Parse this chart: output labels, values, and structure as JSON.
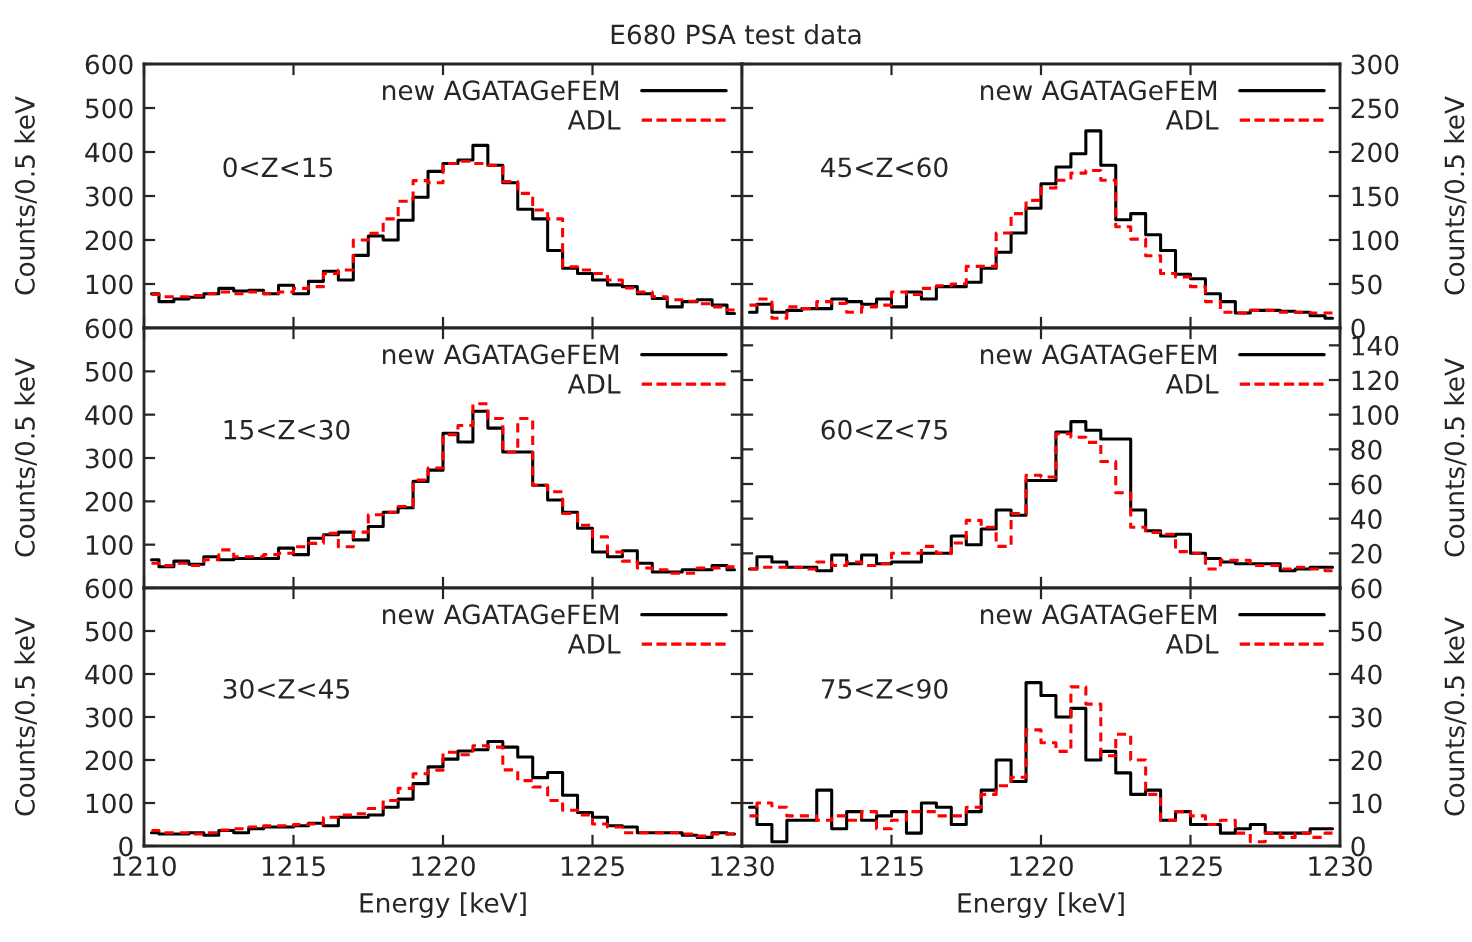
{
  "chart_data": [
    {
      "type": "step",
      "title": "E680 PSA test data",
      "ylabel": "Counts/0.5 keV",
      "tick_labels": "y",
      "legend": "top right",
      "annotations": [
        "0<Z<15"
      ],
      "x": [
        1210.25,
        1210.75,
        1211.25,
        1211.75,
        1212.25,
        1212.75,
        1213.25,
        1213.75,
        1214.25,
        1214.75,
        1215.25,
        1215.75,
        1216.25,
        1216.75,
        1217.25,
        1217.75,
        1218.25,
        1218.75,
        1219.25,
        1219.75,
        1220.25,
        1220.75,
        1221.25,
        1221.75,
        1222.25,
        1222.75,
        1223.25,
        1223.75,
        1224.25,
        1224.75,
        1225.25,
        1225.75,
        1226.25,
        1226.75,
        1227.25,
        1227.75,
        1228.25,
        1228.75,
        1229.25,
        1229.75
      ],
      "xlim": [
        1210,
        1230
      ],
      "xticks": [
        1210,
        1215,
        1220,
        1225,
        1230
      ],
      "ylim": [
        0,
        600
      ],
      "yticks": [
        100,
        200,
        300,
        400,
        500,
        600
      ],
      "series": [
        {
          "name": "new AGATAGeFEM",
          "color": "#000000",
          "line_style": "solid",
          "values": [
            78,
            60,
            66,
            70,
            78,
            90,
            84,
            86,
            78,
            97,
            78,
            106,
            129,
            109,
            165,
            209,
            200,
            245,
            297,
            356,
            374,
            382,
            415,
            370,
            330,
            270,
            248,
            176,
            136,
            124,
            109,
            98,
            94,
            78,
            67,
            48,
            60,
            64,
            52,
            33
          ]
        },
        {
          "name": "ADL",
          "color": "#ff0000",
          "line_style": "dashed",
          "values": [
            76,
            71,
            71,
            74,
            78,
            82,
            78,
            82,
            78,
            82,
            90,
            94,
            124,
            132,
            200,
            215,
            248,
            288,
            335,
            330,
            374,
            379,
            374,
            370,
            333,
            306,
            268,
            248,
            139,
            132,
            124,
            109,
            91,
            82,
            71,
            64,
            61,
            55,
            48,
            41
          ]
        }
      ]
    },
    {
      "type": "step",
      "ylabel": "Counts/0.5 keV",
      "tick_labels": "y",
      "legend": "top right",
      "annotations": [
        "45<Z<60"
      ],
      "x": [
        1210.25,
        1210.75,
        1211.25,
        1211.75,
        1212.25,
        1212.75,
        1213.25,
        1213.75,
        1214.25,
        1214.75,
        1215.25,
        1215.75,
        1216.25,
        1216.75,
        1217.25,
        1217.75,
        1218.25,
        1218.75,
        1219.25,
        1219.75,
        1220.25,
        1220.75,
        1221.25,
        1221.75,
        1222.25,
        1222.75,
        1223.25,
        1223.75,
        1224.25,
        1224.75,
        1225.25,
        1225.75,
        1226.25,
        1226.75,
        1227.25,
        1227.75,
        1228.25,
        1228.75,
        1229.25,
        1229.75
      ],
      "xlim": [
        1210,
        1230
      ],
      "xticks": [
        1210,
        1215,
        1220,
        1225,
        1230
      ],
      "ylim": [
        0,
        300
      ],
      "yticks": [
        0,
        50,
        100,
        150,
        200,
        250,
        300
      ],
      "series": [
        {
          "name": "new AGATAGeFEM",
          "color": "#000000",
          "line_style": "solid",
          "values": [
            18,
            27,
            18,
            20,
            22,
            22,
            33,
            30,
            27,
            33,
            24,
            41,
            33,
            47,
            47,
            52,
            68,
            86,
            108,
            136,
            164,
            183,
            198,
            224,
            185,
            123,
            130,
            106,
            88,
            61,
            56,
            39,
            30,
            17,
            20,
            20,
            19,
            18,
            14,
            11
          ]
        },
        {
          "name": "ADL",
          "color": "#ff0000",
          "line_style": "dashed",
          "values": [
            26,
            33,
            11,
            24,
            22,
            30,
            28,
            18,
            24,
            26,
            41,
            38,
            45,
            48,
            50,
            70,
            70,
            108,
            130,
            145,
            159,
            168,
            176,
            179,
            168,
            115,
            101,
            82,
            62,
            58,
            47,
            30,
            18,
            17,
            20,
            20,
            18,
            18,
            17,
            17
          ]
        }
      ]
    },
    {
      "type": "step",
      "ylabel": "Counts/0.5 keV",
      "tick_labels": "y",
      "legend": "top right",
      "annotations": [
        "15<Z<30"
      ],
      "x": [
        1210.25,
        1210.75,
        1211.25,
        1211.75,
        1212.25,
        1212.75,
        1213.25,
        1213.75,
        1214.25,
        1214.75,
        1215.25,
        1215.75,
        1216.25,
        1216.75,
        1217.25,
        1217.75,
        1218.25,
        1218.75,
        1219.25,
        1219.75,
        1220.25,
        1220.75,
        1221.25,
        1221.75,
        1222.25,
        1222.75,
        1223.25,
        1223.75,
        1224.25,
        1224.75,
        1225.25,
        1225.75,
        1226.25,
        1226.75,
        1227.25,
        1227.75,
        1228.25,
        1228.75,
        1229.25,
        1229.75
      ],
      "xlim": [
        1210,
        1230
      ],
      "xticks": [
        1210,
        1215,
        1220,
        1225,
        1230
      ],
      "ylim": [
        0,
        600
      ],
      "yticks": [
        100,
        200,
        300,
        400,
        500,
        600
      ],
      "series": [
        {
          "name": "new AGATAGeFEM",
          "color": "#000000",
          "line_style": "solid",
          "values": [
            65,
            49,
            62,
            55,
            72,
            65,
            68,
            68,
            68,
            92,
            77,
            115,
            123,
            129,
            111,
            142,
            175,
            185,
            246,
            272,
            357,
            337,
            408,
            369,
            314,
            314,
            237,
            203,
            175,
            138,
            83,
            72,
            86,
            57,
            37,
            37,
            42,
            42,
            52,
            42
          ]
        },
        {
          "name": "ADL",
          "color": "#ff0000",
          "line_style": "dashed",
          "values": [
            57,
            52,
            57,
            52,
            65,
            88,
            72,
            72,
            77,
            80,
            95,
            103,
            126,
            95,
            129,
            169,
            175,
            188,
            249,
            277,
            354,
            375,
            425,
            391,
            314,
            391,
            237,
            222,
            172,
            145,
            118,
            83,
            62,
            46,
            42,
            34,
            34,
            46,
            46,
            49
          ]
        }
      ]
    },
    {
      "type": "step",
      "ylabel": "Counts/0.5 keV",
      "tick_labels": "y",
      "legend": "top right",
      "annotations": [
        "60<Z<75"
      ],
      "x": [
        1210.25,
        1210.75,
        1211.25,
        1211.75,
        1212.25,
        1212.75,
        1213.25,
        1213.75,
        1214.25,
        1214.75,
        1215.25,
        1215.75,
        1216.25,
        1216.75,
        1217.25,
        1217.75,
        1218.25,
        1218.75,
        1219.25,
        1219.75,
        1220.25,
        1220.75,
        1221.25,
        1221.75,
        1222.25,
        1222.75,
        1223.25,
        1223.75,
        1224.25,
        1224.75,
        1225.25,
        1225.75,
        1226.25,
        1226.75,
        1227.25,
        1227.75,
        1228.25,
        1228.75,
        1229.25,
        1229.75
      ],
      "xlim": [
        1210,
        1230
      ],
      "xticks": [
        1210,
        1215,
        1220,
        1225,
        1230
      ],
      "ylim": [
        0,
        150
      ],
      "yticks": [
        20,
        40,
        60,
        80,
        100,
        120,
        140
      ],
      "series": [
        {
          "name": "new AGATAGeFEM",
          "color": "#000000",
          "line_style": "solid",
          "values": [
            11,
            18,
            15,
            12,
            12,
            10,
            19,
            14,
            19,
            14,
            15,
            15,
            20,
            20,
            30,
            25,
            34,
            45,
            42,
            62,
            62,
            90,
            96,
            91,
            86,
            86,
            45,
            33,
            30,
            31,
            20,
            17,
            15,
            14,
            14,
            14,
            10,
            11,
            12,
            12
          ]
        },
        {
          "name": "ADL",
          "color": "#ff0000",
          "line_style": "dashed",
          "values": [
            11,
            12,
            12,
            12,
            11,
            15,
            13,
            15,
            13,
            14,
            20,
            20,
            24,
            20,
            26,
            39,
            35,
            24,
            43,
            65,
            64,
            89,
            87,
            84,
            73,
            55,
            35,
            32,
            31,
            21,
            20,
            11,
            16,
            16,
            13,
            13,
            11,
            12,
            11,
            10
          ]
        }
      ]
    },
    {
      "type": "step",
      "xlabel": "Energy [keV]",
      "ylabel": "Counts/0.5 keV",
      "legend": "top right",
      "annotations": [
        "30<Z<45"
      ],
      "x": [
        1210.25,
        1210.75,
        1211.25,
        1211.75,
        1212.25,
        1212.75,
        1213.25,
        1213.75,
        1214.25,
        1214.75,
        1215.25,
        1215.75,
        1216.25,
        1216.75,
        1217.25,
        1217.75,
        1218.25,
        1218.75,
        1219.25,
        1219.75,
        1220.25,
        1220.75,
        1221.25,
        1221.75,
        1222.25,
        1222.75,
        1223.25,
        1223.75,
        1224.25,
        1224.75,
        1225.25,
        1225.75,
        1226.25,
        1226.75,
        1227.25,
        1227.75,
        1228.25,
        1228.75,
        1229.25,
        1229.75
      ],
      "xlim": [
        1210,
        1230
      ],
      "xticks": [
        1210,
        1215,
        1220,
        1225,
        1230
      ],
      "ylim": [
        0,
        600
      ],
      "yticks": [
        0,
        100,
        200,
        300,
        400,
        500,
        600
      ],
      "series": [
        {
          "name": "new AGATAGeFEM",
          "color": "#000000",
          "line_style": "solid",
          "values": [
            31,
            28,
            28,
            31,
            25,
            36,
            31,
            40,
            44,
            44,
            47,
            53,
            47,
            67,
            67,
            72,
            90,
            109,
            145,
            184,
            202,
            221,
            224,
            243,
            230,
            207,
            159,
            171,
            118,
            78,
            67,
            47,
            44,
            31,
            31,
            31,
            25,
            20,
            31,
            28
          ]
        },
        {
          "name": "ADL",
          "color": "#ff0000",
          "line_style": "dashed",
          "values": [
            36,
            31,
            31,
            28,
            31,
            37,
            40,
            44,
            47,
            47,
            50,
            51,
            67,
            72,
            75,
            87,
            106,
            134,
            168,
            176,
            218,
            212,
            233,
            230,
            177,
            152,
            137,
            106,
            83,
            72,
            51,
            44,
            31,
            31,
            31,
            31,
            28,
            23,
            28,
            28
          ]
        }
      ]
    },
    {
      "type": "step",
      "xlabel": "Energy [keV]",
      "ylabel": "Counts/0.5 keV",
      "legend": "top right",
      "annotations": [
        "75<Z<90"
      ],
      "x": [
        1210.25,
        1210.75,
        1211.25,
        1211.75,
        1212.25,
        1212.75,
        1213.25,
        1213.75,
        1214.25,
        1214.75,
        1215.25,
        1215.75,
        1216.25,
        1216.75,
        1217.25,
        1217.75,
        1218.25,
        1218.75,
        1219.25,
        1219.75,
        1220.25,
        1220.75,
        1221.25,
        1221.75,
        1222.25,
        1222.75,
        1223.25,
        1223.75,
        1224.25,
        1224.75,
        1225.25,
        1225.75,
        1226.25,
        1226.75,
        1227.25,
        1227.75,
        1228.25,
        1228.75,
        1229.25,
        1229.75
      ],
      "xlim": [
        1210,
        1230
      ],
      "xticks": [
        1215,
        1220,
        1225,
        1230
      ],
      "ylim": [
        0,
        60
      ],
      "yticks": [
        0,
        10,
        20,
        30,
        40,
        50,
        60
      ],
      "series": [
        {
          "name": "new AGATAGeFEM",
          "color": "#000000",
          "line_style": "solid",
          "values": [
            9,
            5,
            1,
            6,
            6,
            13,
            4,
            8,
            6,
            7,
            8,
            3,
            10,
            9,
            5,
            8,
            13,
            20,
            15,
            38,
            35,
            30,
            32,
            20,
            22,
            17,
            12,
            13,
            6,
            8,
            5,
            5,
            3,
            4,
            5,
            3,
            3,
            3,
            4,
            4
          ]
        },
        {
          "name": "ADL",
          "color": "#ff0000",
          "line_style": "dashed",
          "values": [
            7,
            10,
            9,
            7,
            7,
            6,
            7,
            6,
            8,
            4,
            6,
            8,
            8,
            7,
            7,
            9,
            12,
            14,
            16,
            27,
            24,
            22,
            37,
            33,
            21,
            26,
            20,
            12,
            6,
            8,
            7,
            5,
            6,
            3,
            1,
            3,
            2,
            3,
            2,
            3
          ]
        }
      ]
    }
  ]
}
